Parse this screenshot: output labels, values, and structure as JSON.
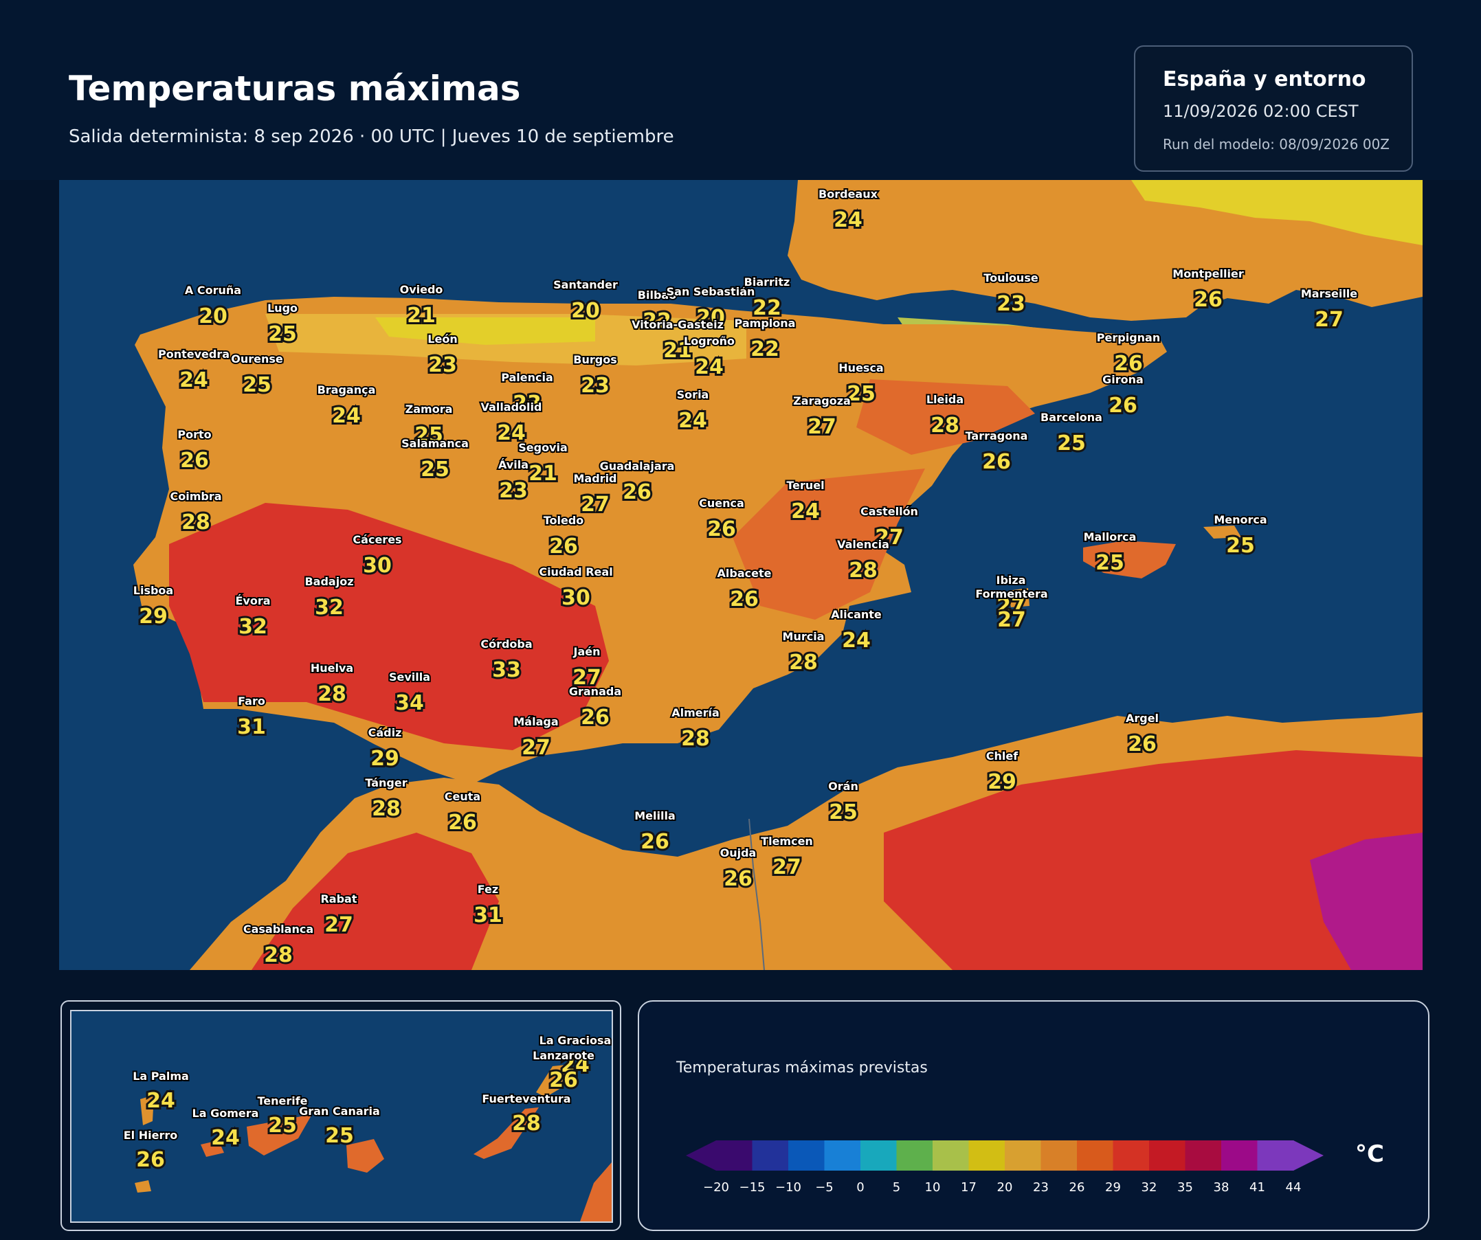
{
  "header": {
    "title": "Temperaturas máximas",
    "subtitle": "Salida determinista: 8 sep 2026 · 00 UTC  |  Jueves 10 de septiembre"
  },
  "info": {
    "region": "España y entorno",
    "valid": "11/09/2026  02:00 CEST",
    "run": "Run del modelo: 08/09/2026 00Z"
  },
  "colors": {
    "sea": "#0e3f6e",
    "land_base": "#e0922e",
    "warm": "#e06a2c",
    "hot": "#d8342a",
    "cool": "#e8b43c",
    "yellow": "#e3cf2a",
    "green": "#b8c44c",
    "extreme": "#b01a8a"
  },
  "map_points": [
    {
      "name": "Bordeaux",
      "value": "24"
    },
    {
      "name": "A Coruña",
      "value": "20"
    },
    {
      "name": "Oviedo",
      "value": "21"
    },
    {
      "name": "Santander",
      "value": "20"
    },
    {
      "name": "Bilbao",
      "value": "22"
    },
    {
      "name": "San Sebastián",
      "value": "20"
    },
    {
      "name": "Biarritz",
      "value": "22"
    },
    {
      "name": "Toulouse",
      "value": "23"
    },
    {
      "name": "Montpellier",
      "value": "26"
    },
    {
      "name": "Marseille",
      "value": "27"
    },
    {
      "name": "Lugo",
      "value": "25"
    },
    {
      "name": "Vitoria-Gasteiz",
      "value": "21"
    },
    {
      "name": "Pamplona",
      "value": "22"
    },
    {
      "name": "Logroño",
      "value": "24"
    },
    {
      "name": "Pontevedra",
      "value": "24"
    },
    {
      "name": "Ourense",
      "value": "25"
    },
    {
      "name": "León",
      "value": "23"
    },
    {
      "name": "Burgos",
      "value": "23"
    },
    {
      "name": "Perpignan",
      "value": "26"
    },
    {
      "name": "Palencia",
      "value": "23"
    },
    {
      "name": "Huesca",
      "value": "25"
    },
    {
      "name": "Girona",
      "value": "26"
    },
    {
      "name": "Bragança",
      "value": "24"
    },
    {
      "name": "Soria",
      "value": "24"
    },
    {
      "name": "Zaragoza",
      "value": "27"
    },
    {
      "name": "Lleida",
      "value": "28"
    },
    {
      "name": "Zamora",
      "value": "25"
    },
    {
      "name": "Valladolid",
      "value": "24"
    },
    {
      "name": "Barcelona",
      "value": "25"
    },
    {
      "name": "Porto",
      "value": "26"
    },
    {
      "name": "Tarragona",
      "value": "26"
    },
    {
      "name": "Salamanca",
      "value": "25"
    },
    {
      "name": "Segovia",
      "value": "21"
    },
    {
      "name": "Ávila",
      "value": "23"
    },
    {
      "name": "Guadalajara",
      "value": "26"
    },
    {
      "name": "Madrid",
      "value": "27"
    },
    {
      "name": "Teruel",
      "value": "24"
    },
    {
      "name": "Coimbra",
      "value": "28"
    },
    {
      "name": "Cuenca",
      "value": "26"
    },
    {
      "name": "Castellón",
      "value": "27"
    },
    {
      "name": "Toledo",
      "value": "26"
    },
    {
      "name": "Menorca",
      "value": "25"
    },
    {
      "name": "Cáceres",
      "value": "30"
    },
    {
      "name": "Mallorca",
      "value": "25"
    },
    {
      "name": "Valencia",
      "value": "28"
    },
    {
      "name": "Ciudad Real",
      "value": "30"
    },
    {
      "name": "Albacete",
      "value": "26"
    },
    {
      "name": "Badajoz",
      "value": "32"
    },
    {
      "name": "Ibiza",
      "value": "27"
    },
    {
      "name": "Formentera",
      "value": "27"
    },
    {
      "name": "Lisboa",
      "value": "29"
    },
    {
      "name": "Évora",
      "value": "32"
    },
    {
      "name": "Alicante",
      "value": "24"
    },
    {
      "name": "Murcia",
      "value": "28"
    },
    {
      "name": "Córdoba",
      "value": "33"
    },
    {
      "name": "Jaén",
      "value": "27"
    },
    {
      "name": "Huelva",
      "value": "28"
    },
    {
      "name": "Sevilla",
      "value": "34"
    },
    {
      "name": "Granada",
      "value": "26"
    },
    {
      "name": "Faro",
      "value": "31"
    },
    {
      "name": "Almería",
      "value": "28"
    },
    {
      "name": "Málaga",
      "value": "27"
    },
    {
      "name": "Argel",
      "value": "26"
    },
    {
      "name": "Cádiz",
      "value": "29"
    },
    {
      "name": "Chlef",
      "value": "29"
    },
    {
      "name": "Tánger",
      "value": "28"
    },
    {
      "name": "Ceuta",
      "value": "26"
    },
    {
      "name": "Orán",
      "value": "25"
    },
    {
      "name": "Melilla",
      "value": "26"
    },
    {
      "name": "Tlemcen",
      "value": "27"
    },
    {
      "name": "Oujda",
      "value": "26"
    },
    {
      "name": "Rabat",
      "value": "27"
    },
    {
      "name": "Fez",
      "value": "31"
    },
    {
      "name": "Casablanca",
      "value": "28"
    }
  ],
  "inset_points": [
    {
      "name": "La Graciosa",
      "value": "24"
    },
    {
      "name": "Lanzarote",
      "value": "26"
    },
    {
      "name": "La Palma",
      "value": "24"
    },
    {
      "name": "Fuerteventura",
      "value": "28"
    },
    {
      "name": "Tenerife",
      "value": "25"
    },
    {
      "name": "La Gomera",
      "value": "24"
    },
    {
      "name": "Gran Canaria",
      "value": "25"
    },
    {
      "name": "El Hierro",
      "value": "26"
    }
  ],
  "legend": {
    "title": "Temperaturas máximas previstas",
    "unit": "°C",
    "ticks": [
      "−20",
      "−15",
      "−10",
      "−5",
      "0",
      "5",
      "10",
      "17",
      "20",
      "23",
      "26",
      "29",
      "32",
      "35",
      "38",
      "41",
      "44"
    ],
    "colors": [
      "#3a0a6e",
      "#22329a",
      "#0a58b8",
      "#1880d6",
      "#18a8bc",
      "#5eb04c",
      "#a8c04a",
      "#d2be14",
      "#d8a030",
      "#d88028",
      "#d85a1c",
      "#d43224",
      "#c41a24",
      "#a80c40",
      "#9c0a88",
      "#7c38bc"
    ]
  }
}
